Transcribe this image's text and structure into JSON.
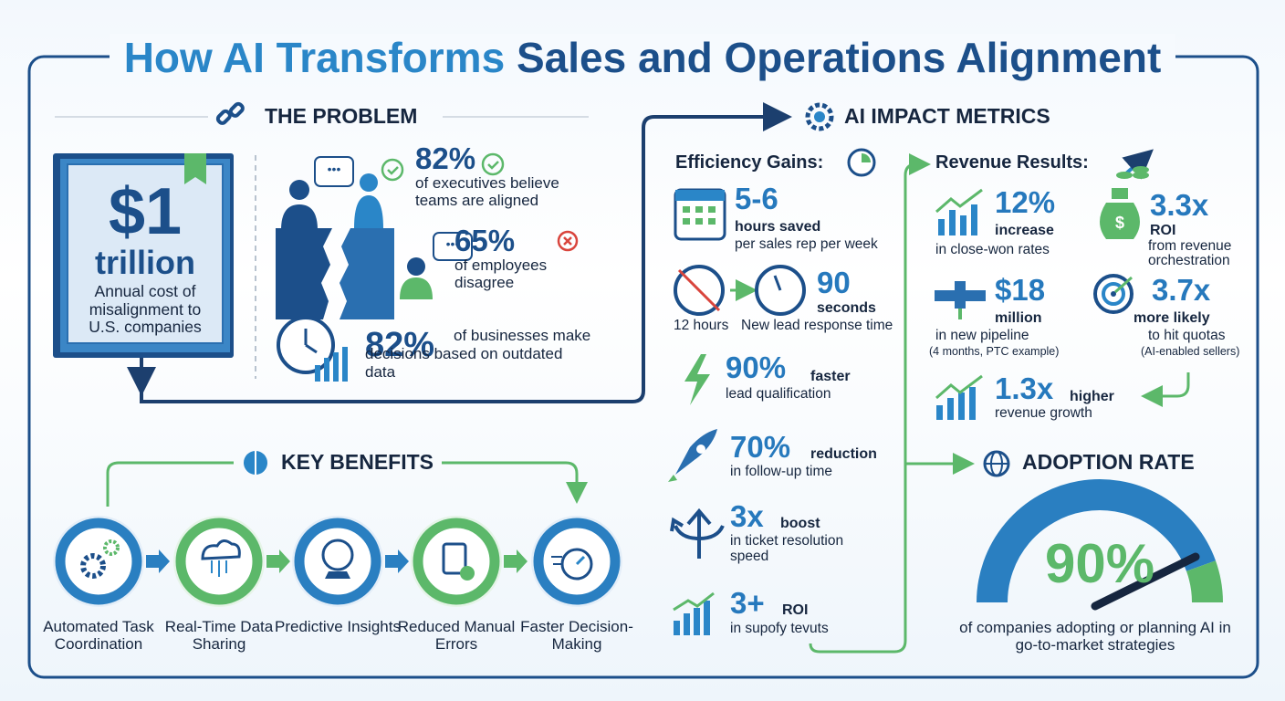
{
  "title": {
    "lead": "How AI Transforms",
    "rest": "Sales and Operations Alignment"
  },
  "problem": {
    "heading": "THE PROBLEM",
    "cost": {
      "amount": "$1",
      "unit": "trillion",
      "description": "Annual cost of misalignment to U.S. companies"
    },
    "stats": [
      {
        "value": "82%",
        "text": "of executives believe teams are aligned"
      },
      {
        "value": "65%",
        "text": "of employees disagree"
      },
      {
        "value": "82%",
        "text": "of businesses make decisions based on outdated data"
      }
    ]
  },
  "benefits": {
    "heading": "KEY BENEFITS",
    "items": [
      "Automated Task Coordination",
      "Real-Time Data Sharing",
      "Predictive Insights",
      "Reduced Manual Errors",
      "Faster Decision-Making"
    ]
  },
  "metrics": {
    "heading": "AI IMPACT METRICS",
    "efficiency": {
      "heading": "Efficiency Gains:",
      "items": [
        {
          "value": "5-6",
          "label": "hours saved",
          "detail": "per sales rep per week"
        },
        {
          "before": "12 hours",
          "value": "90",
          "label": "seconds",
          "detail": "New lead response time"
        },
        {
          "value": "90%",
          "label": "faster",
          "detail": "lead qualification"
        },
        {
          "value": "70%",
          "label": "reduction",
          "detail": "in follow-up time"
        },
        {
          "value": "3x",
          "label": "boost",
          "detail": "in ticket resolution speed"
        },
        {
          "value": "3+",
          "label": "ROI",
          "detail": "in supofy tevuts"
        }
      ]
    },
    "revenue": {
      "heading": "Revenue Results:",
      "items": [
        {
          "value": "12%",
          "label": "increase",
          "detail": "in close-won rates"
        },
        {
          "value": "3.3x",
          "label": "ROI",
          "detail": "from revenue orchestration"
        },
        {
          "value": "$18",
          "label": "million",
          "detail": "in new pipeline",
          "note": "(4 months, PTC example)"
        },
        {
          "value": "3.7x",
          "label": "more likely",
          "detail": "to hit quotas",
          "note": "(AI-enabled sellers)"
        },
        {
          "value": "1.3x",
          "label": "higher",
          "detail": "revenue growth"
        }
      ]
    }
  },
  "adoption": {
    "heading": "ADOPTION RATE",
    "value": "90%",
    "text": "of companies adopting or planning AI in go-to-market strategies"
  }
}
